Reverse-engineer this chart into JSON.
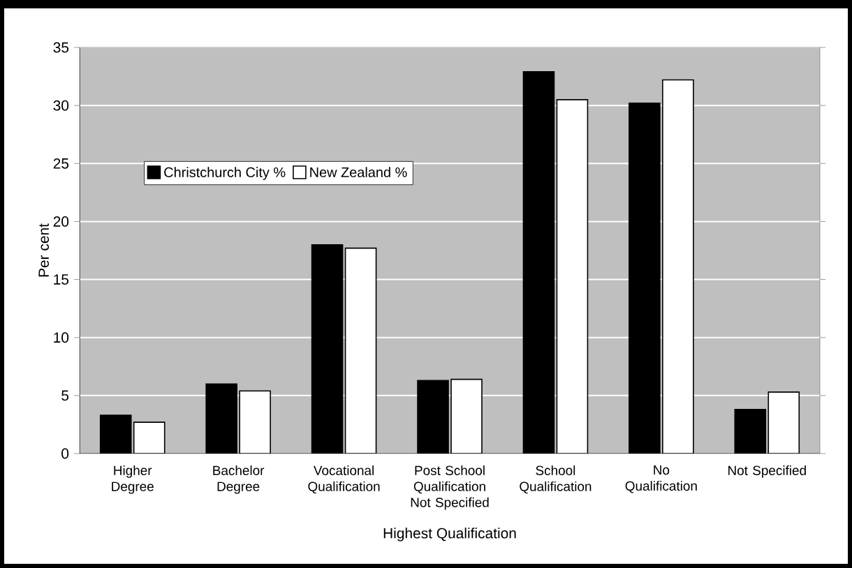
{
  "chart_data": {
    "type": "bar",
    "xlabel": "Highest Qualification",
    "ylabel": "Per cent",
    "categories": [
      "Higher Degree",
      "Bachelor Degree",
      "Vocational Qualification",
      "Post School Qualification Not Specified",
      "School Qualification",
      "No Qualification",
      "Not Specified"
    ],
    "series": [
      {
        "name": "Christchurch City %",
        "color": "#000000",
        "values": [
          3.3,
          6.0,
          18.0,
          6.3,
          32.9,
          30.2,
          3.8
        ]
      },
      {
        "name": "New Zealand %",
        "color": "#ffffff",
        "values": [
          2.7,
          5.4,
          17.7,
          6.4,
          30.5,
          32.2,
          5.3
        ]
      }
    ],
    "ylim": [
      0,
      35
    ],
    "yticks": [
      0,
      5,
      10,
      15,
      20,
      25,
      30,
      35
    ],
    "grid": "y",
    "legend": "top left"
  }
}
